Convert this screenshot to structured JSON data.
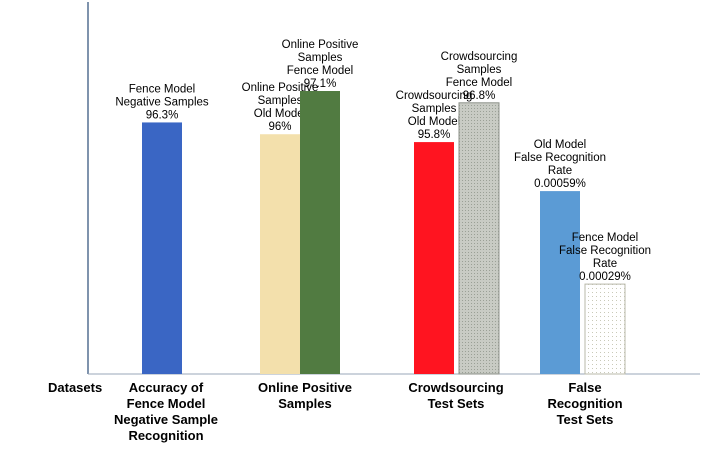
{
  "chart_data": {
    "type": "bar",
    "title": "",
    "xlabel": "Datasets",
    "ylabel": "",
    "categories": [
      {
        "label": [
          "Accuracy of",
          "Fence Model",
          "Negative Sample",
          "Recognition"
        ]
      },
      {
        "label": [
          "Online Positive",
          "Samples"
        ]
      },
      {
        "label": [
          "Crowdsourcing",
          "Test Sets"
        ]
      },
      {
        "label": [
          "False",
          "Recognition",
          "Test Sets"
        ]
      }
    ],
    "bars": [
      {
        "category": 0,
        "value": 96.3,
        "display": "96.3%",
        "label": [
          "Fence Model",
          "Negative Samples"
        ],
        "color": "#3a66c4",
        "style": "solid"
      },
      {
        "category": 1,
        "value": 96.0,
        "display": "96%",
        "label": [
          "Online Positive",
          "Samples",
          "Old Model"
        ],
        "color": "#f3e0ac",
        "style": "solid"
      },
      {
        "category": 1,
        "value": 97.1,
        "display": "97.1%",
        "label": [
          "Online Positive",
          "Samples",
          "Fence Model"
        ],
        "color": "#517b41",
        "style": "solid"
      },
      {
        "category": 2,
        "value": 95.8,
        "display": "95.8%",
        "label": [
          "Crowdsourcing",
          "Samples",
          "Old Model"
        ],
        "color": "#ff1420",
        "style": "solid"
      },
      {
        "category": 2,
        "value": 96.8,
        "display": "96.8%",
        "label": [
          "Crowdsourcing",
          "Samples",
          "Fence Model"
        ],
        "color": "#c2c6bf",
        "style": "hatched"
      },
      {
        "category": 3,
        "value": 0.00059,
        "display": "0.00059%",
        "label": [
          "Old Model",
          "False Recognition",
          "Rate"
        ],
        "color": "#5b9bd5",
        "style": "solid"
      },
      {
        "category": 3,
        "value": 0.00029,
        "display": "0.00029%",
        "label": [
          "Fence Model",
          "False Recognition",
          "Rate"
        ],
        "color": "#ffffff",
        "style": "dotted"
      }
    ],
    "grid": false,
    "legend": "none"
  }
}
